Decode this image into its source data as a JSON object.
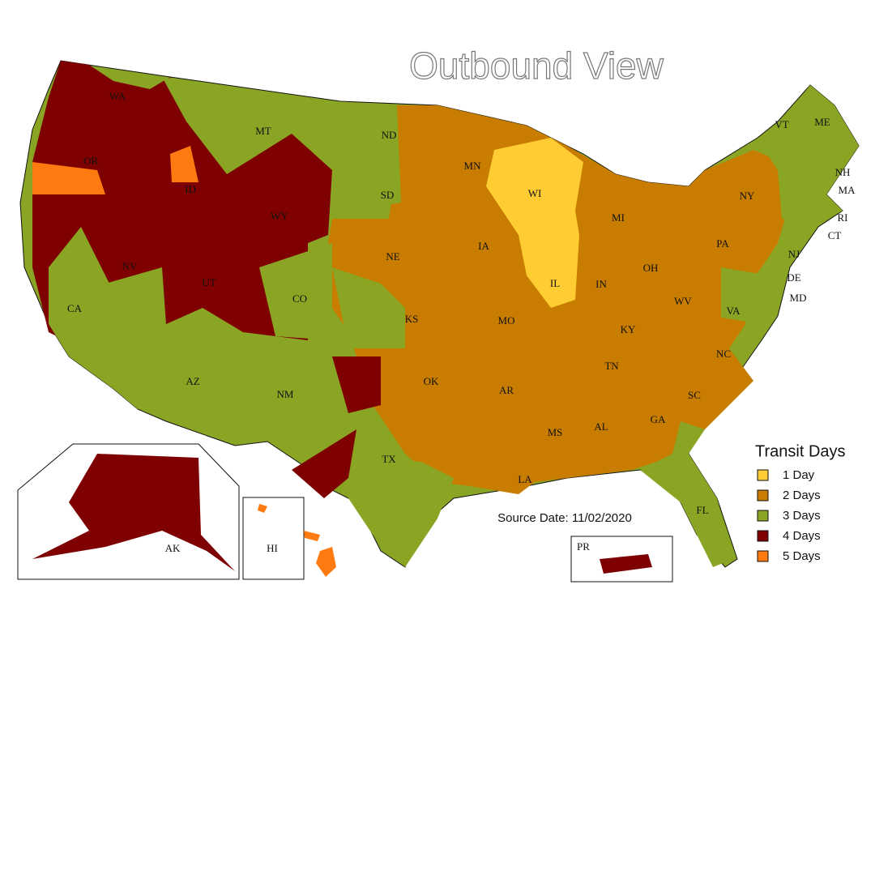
{
  "title": "Outbound View",
  "source": "Source Date: 11/02/2020",
  "legend": {
    "title": "Transit Days",
    "items": [
      {
        "label": "1 Day",
        "color": "#ffcc33"
      },
      {
        "label": "2 Days",
        "color": "#c87d00"
      },
      {
        "label": "3 Days",
        "color": "#8aa524"
      },
      {
        "label": "4 Days",
        "color": "#7f0000"
      },
      {
        "label": "5 Days",
        "color": "#ff7a10"
      }
    ]
  },
  "states": [
    "WA",
    "OR",
    "ID",
    "MT",
    "ND",
    "SD",
    "WY",
    "NV",
    "UT",
    "CO",
    "NE",
    "KS",
    "CA",
    "AZ",
    "NM",
    "OK",
    "TX",
    "MN",
    "IA",
    "MO",
    "AR",
    "LA",
    "WI",
    "IL",
    "MS",
    "AL",
    "TN",
    "KY",
    "IN",
    "OH",
    "MI",
    "WV",
    "VA",
    "NC",
    "SC",
    "GA",
    "FL",
    "PA",
    "NY",
    "VT",
    "ME",
    "NH",
    "MA",
    "RI",
    "CT",
    "NJ",
    "DE",
    "MD",
    "AK",
    "HI",
    "PR"
  ]
}
